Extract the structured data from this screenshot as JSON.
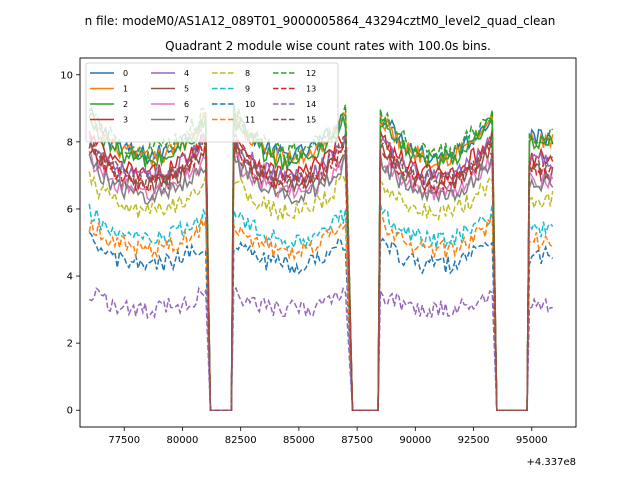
{
  "figure": {
    "suptitle": "n file: modeM0/AS1A12_089T01_9000005864_43294cztM0_level2_quad_clean",
    "title": "Quadrant 2 module wise count rates with 100.0s bins.",
    "offset_label": "+4.337e8"
  },
  "chart_data": {
    "type": "line",
    "title": "Quadrant 2 module wise count rates with 100.0s bins.",
    "xlabel": "",
    "ylabel": "",
    "x_offset": 433700000,
    "xlim": [
      75600,
      96900
    ],
    "ylim": [
      -0.5,
      10.5
    ],
    "xticks": [
      77500,
      80000,
      82500,
      85000,
      87500,
      90000,
      92500,
      95000
    ],
    "yticks": [
      0,
      2,
      4,
      6,
      8,
      10
    ],
    "grid": false,
    "legend": {
      "placement": "upper-left",
      "columns": 4
    },
    "segments": [
      {
        "start": 76000,
        "end": 81000,
        "trend": "U"
      },
      {
        "start": 81200,
        "end": 82100,
        "trend": "zero"
      },
      {
        "start": 82200,
        "end": 87000,
        "trend": "U"
      },
      {
        "start": 87300,
        "end": 88400,
        "trend": "zero"
      },
      {
        "start": 88500,
        "end": 93300,
        "trend": "U"
      },
      {
        "start": 93500,
        "end": 94800,
        "trend": "zero"
      },
      {
        "start": 94900,
        "end": 95900,
        "trend": "flat"
      }
    ],
    "series": [
      {
        "name": "0",
        "color": "#1f77b4",
        "dashed": false,
        "level": 8.1
      },
      {
        "name": "1",
        "color": "#ff7f0e",
        "dashed": false,
        "level": 8.0
      },
      {
        "name": "2",
        "color": "#2ca02c",
        "dashed": false,
        "level": 7.9
      },
      {
        "name": "3",
        "color": "#d62728",
        "dashed": false,
        "level": 7.5
      },
      {
        "name": "4",
        "color": "#9467bd",
        "dashed": false,
        "level": 7.4
      },
      {
        "name": "5",
        "color": "#8c564b",
        "dashed": false,
        "level": 7.1
      },
      {
        "name": "6",
        "color": "#e377c2",
        "dashed": false,
        "level": 6.9
      },
      {
        "name": "7",
        "color": "#7f7f7f",
        "dashed": false,
        "level": 6.8
      },
      {
        "name": "8",
        "color": "#bcbd22",
        "dashed": true,
        "level": 6.3
      },
      {
        "name": "9",
        "color": "#17becf",
        "dashed": true,
        "level": 5.4
      },
      {
        "name": "10",
        "color": "#1f77b4",
        "dashed": true,
        "level": 4.6
      },
      {
        "name": "11",
        "color": "#ff7f0e",
        "dashed": true,
        "level": 5.1
      },
      {
        "name": "12",
        "color": "#2ca02c",
        "dashed": true,
        "level": 8.2
      },
      {
        "name": "13",
        "color": "#d62728",
        "dashed": true,
        "level": 7.2
      },
      {
        "name": "14",
        "color": "#9467bd",
        "dashed": true,
        "level": 3.2
      },
      {
        "name": "15",
        "color": "#8c564b",
        "dashed": true,
        "level": 7.3
      }
    ]
  }
}
